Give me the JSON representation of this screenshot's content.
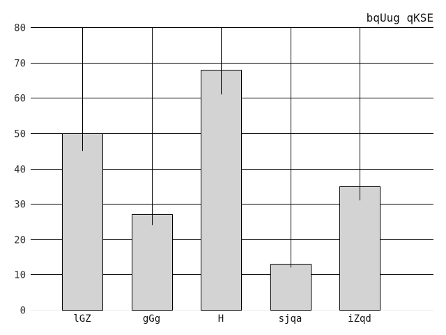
{
  "chart_data": {
    "type": "bar",
    "title": "bqUug qKSE",
    "xlabel": "",
    "ylabel": "",
    "categories": [
      "lGZ",
      "gGg",
      "H",
      "sjqa",
      "iZqd"
    ],
    "values": [
      50,
      27,
      68,
      13,
      35
    ],
    "error_bars": [
      {
        "low": 45,
        "high": 80
      },
      {
        "low": 24,
        "high": 80
      },
      {
        "low": 61,
        "high": 80
      },
      {
        "low": 12,
        "high": 80
      },
      {
        "low": 31,
        "high": 80
      }
    ],
    "ylim": [
      0,
      80
    ],
    "yticks": [
      0,
      10,
      20,
      30,
      40,
      50,
      60,
      70,
      80
    ],
    "grid": "horizontal",
    "legend": "none",
    "colors": {
      "bar_fill": "#d3d3d3",
      "bar_stroke": "#000000",
      "grid": "#000000",
      "error_bar": "#000000"
    }
  }
}
